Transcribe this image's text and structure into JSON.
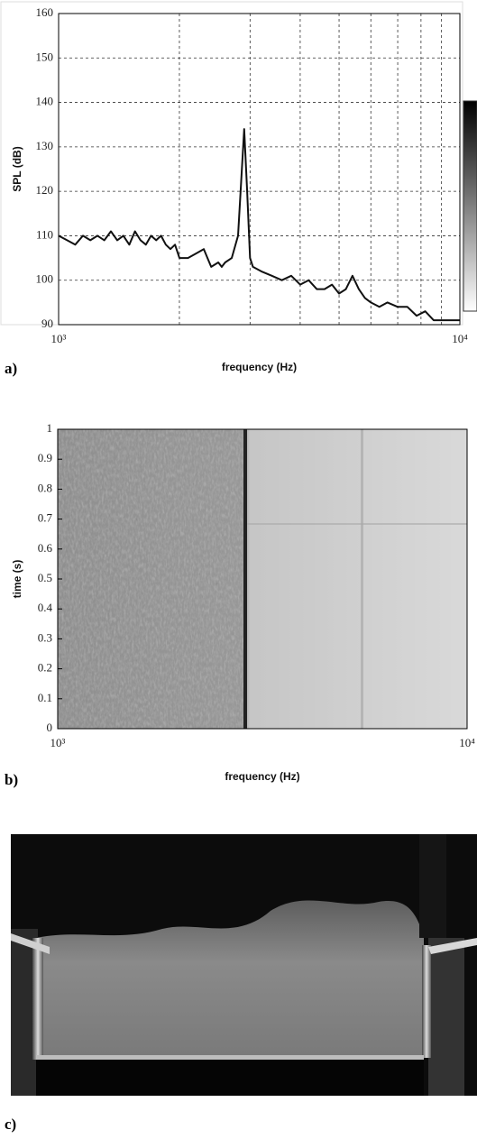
{
  "chart_data": [
    {
      "type": "line",
      "label": "a)",
      "xlabel": "frequency  (Hz)",
      "ylabel": "SPL  (dB)",
      "xscale": "log",
      "grid": true,
      "color": "#111111",
      "xlim": [
        1000,
        10000
      ],
      "xticks": [
        {
          "value": 1000,
          "label": "10³"
        },
        {
          "value": 10000,
          "label": "10⁴"
        }
      ],
      "xminor": [
        2000,
        3000,
        4000,
        5000,
        6000,
        7000,
        8000,
        9000
      ],
      "ylim": [
        90,
        160
      ],
      "yticks": [
        90,
        100,
        110,
        120,
        130,
        140,
        150,
        160
      ],
      "x": [
        1000,
        1050,
        1100,
        1150,
        1200,
        1250,
        1300,
        1350,
        1400,
        1450,
        1500,
        1550,
        1600,
        1650,
        1700,
        1750,
        1800,
        1850,
        1900,
        1950,
        2000,
        2100,
        2200,
        2300,
        2350,
        2400,
        2500,
        2550,
        2600,
        2700,
        2800,
        2850,
        2900,
        2950,
        3000,
        3050,
        3200,
        3400,
        3600,
        3800,
        4000,
        4200,
        4400,
        4600,
        4800,
        5000,
        5200,
        5400,
        5600,
        5800,
        6000,
        6300,
        6600,
        7000,
        7400,
        7800,
        8200,
        8600,
        9000,
        9500,
        10000
      ],
      "values": [
        110,
        109,
        108,
        110,
        109,
        110,
        109,
        111,
        109,
        110,
        108,
        111,
        109,
        108,
        110,
        109,
        110,
        108,
        107,
        108,
        105,
        105,
        106,
        107,
        105,
        103,
        104,
        103,
        104,
        105,
        110,
        122,
        134,
        120,
        105,
        103,
        102,
        101,
        100,
        101,
        99,
        100,
        98,
        98,
        99,
        97,
        98,
        101,
        98,
        96,
        95,
        94,
        95,
        94,
        94,
        92,
        93,
        91,
        91,
        91,
        91
      ]
    },
    {
      "type": "spectrogram",
      "label": "b)",
      "xlabel": "frequency  (Hz)",
      "ylabel": "time  (s)",
      "xscale": "log",
      "grid": false,
      "xlim": [
        1000,
        10000
      ],
      "xticks": [
        {
          "value": 1000,
          "label": "10³"
        },
        {
          "value": 10000,
          "label": "10⁴"
        }
      ],
      "ylim": [
        0,
        1
      ],
      "yticks": [
        0,
        0.1,
        0.2,
        0.3,
        0.4,
        0.5,
        0.6,
        0.7,
        0.8,
        0.9,
        1
      ]
    },
    {
      "type": "image",
      "label": "c)"
    }
  ]
}
